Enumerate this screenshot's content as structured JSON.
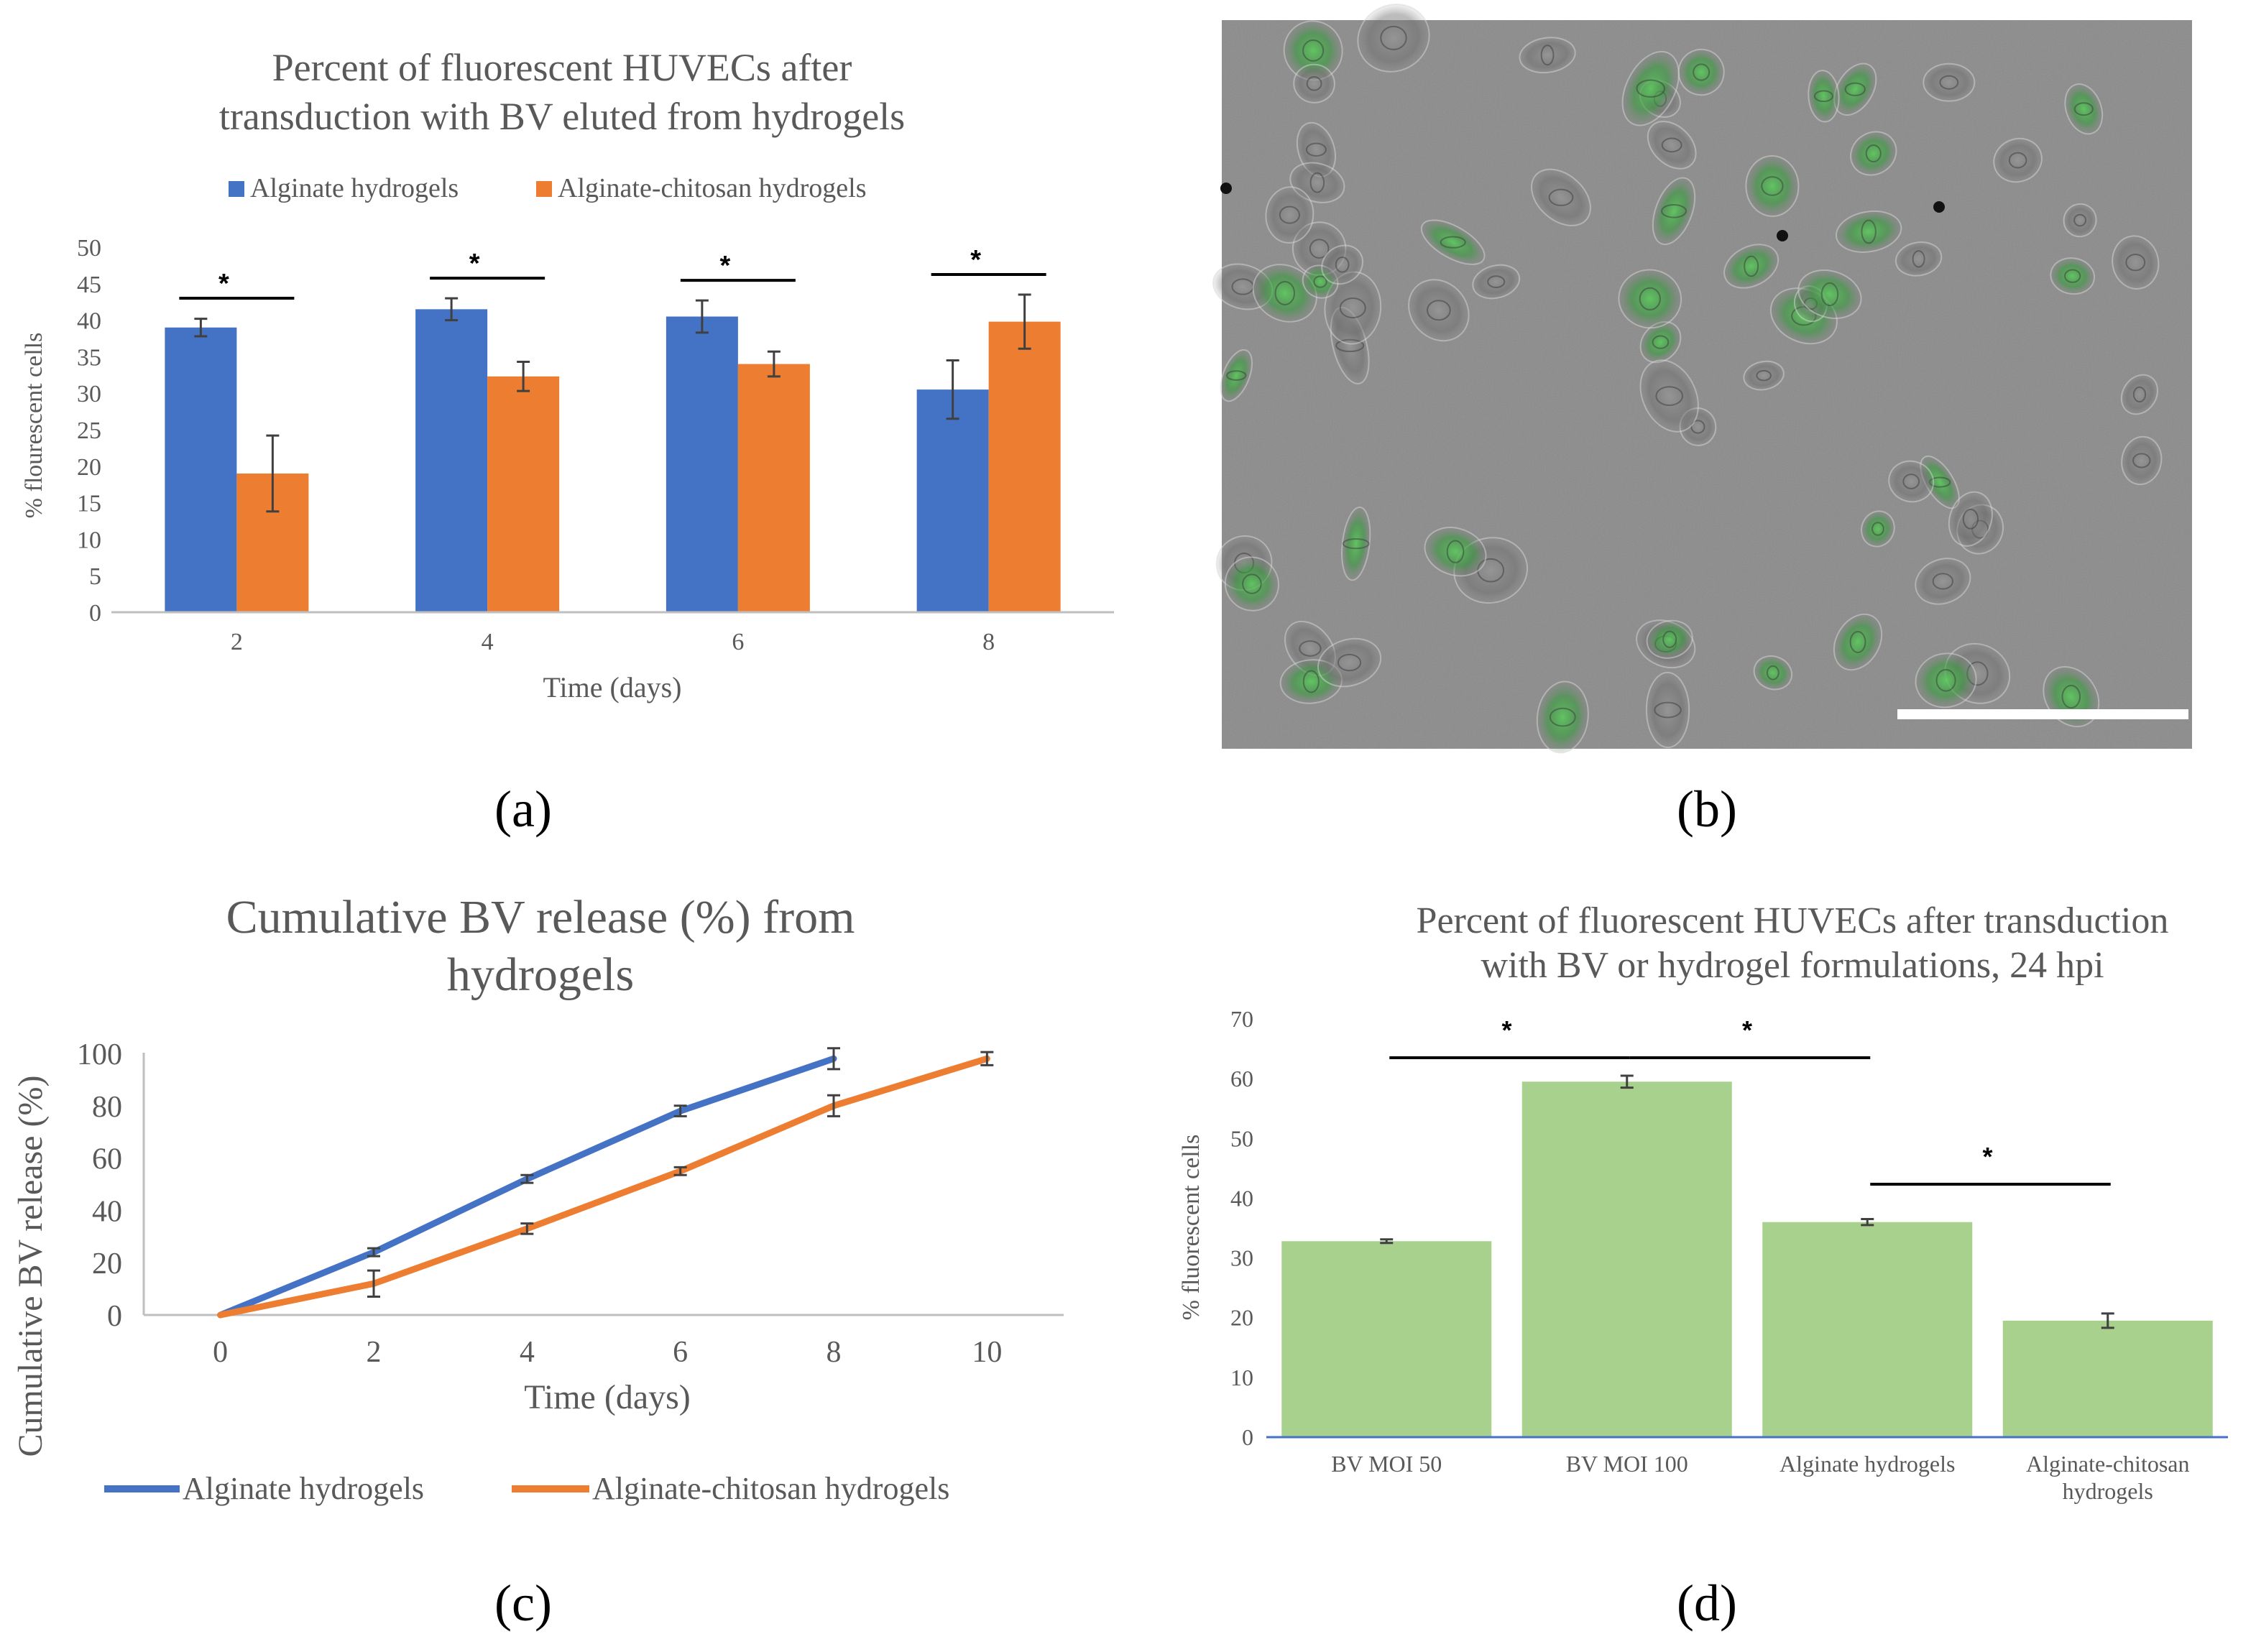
{
  "colors": {
    "alginate": "#4472C4",
    "alginate_chitosan": "#ED7D31",
    "green_bar": "#A9D18E",
    "axis": "#BFBFBF",
    "axis_d": "#4472C4",
    "text": "#595959"
  },
  "chart_data": [
    {
      "panel": "(a)",
      "type": "bar",
      "title": [
        "Percent of fluorescent HUVECs after",
        "transduction with BV eluted from hydrogels"
      ],
      "categories": [
        "2",
        "4",
        "6",
        "8"
      ],
      "series": [
        {
          "name": "Alginate hydrogels",
          "values": [
            39,
            41.5,
            40.5,
            30.5
          ],
          "errors": [
            1.2,
            1.5,
            2.2,
            4
          ]
        },
        {
          "name": "Alginate-chitosan hydrogels",
          "values": [
            19,
            32.3,
            34,
            39.8
          ],
          "errors": [
            5.2,
            2,
            1.7,
            3.7
          ]
        }
      ],
      "significance_label": "*",
      "xlabel": "Time (days)",
      "ylabel": "% flourescent cells",
      "ylim": [
        0,
        50
      ],
      "yticks": [
        "0",
        "5",
        "10",
        "15",
        "20",
        "25",
        "30",
        "35",
        "40",
        "45",
        "50"
      ],
      "legend_position": "top"
    },
    {
      "panel": "(c)",
      "type": "line",
      "title": [
        "Cumulative BV release (%) from",
        "hydrogels"
      ],
      "x": [
        0,
        2,
        4,
        6,
        8,
        10
      ],
      "xticks": [
        "0",
        "2",
        "4",
        "6",
        "8",
        "10"
      ],
      "series": [
        {
          "name": "Alginate hydrogels",
          "x": [
            0,
            2,
            4,
            6,
            8
          ],
          "values": [
            0,
            24,
            52,
            78,
            98
          ],
          "errors": [
            0,
            1.5,
            1.5,
            2,
            4
          ]
        },
        {
          "name": "Alginate-chitosan hydrogels",
          "x": [
            0,
            2,
            4,
            6,
            8,
            10
          ],
          "values": [
            0,
            12,
            33,
            55,
            80,
            98
          ],
          "errors": [
            0,
            5,
            2,
            1.5,
            4,
            2.5
          ]
        }
      ],
      "xlabel": "Time (days)",
      "ylabel": "Cumulative BV release (%)",
      "ylim": [
        0,
        100
      ],
      "yticks": [
        "0",
        "20",
        "40",
        "60",
        "80",
        "100"
      ],
      "legend_position": "bottom"
    },
    {
      "panel": "(d)",
      "type": "bar",
      "title": [
        "Percent of fluorescent HUVECs after transduction",
        "with BV or hydrogel formulations, 24 hpi"
      ],
      "categories": [
        [
          "BV MOI 50"
        ],
        [
          "BV MOI 100"
        ],
        [
          "Alginate hydrogels"
        ],
        [
          "Alginate-chitosan",
          "hydrogels"
        ]
      ],
      "values": [
        32.8,
        59.5,
        36,
        19.5
      ],
      "errors": [
        0.3,
        1,
        0.5,
        1.2
      ],
      "significance_label": "*",
      "xlabel": "",
      "ylabel": "% fluorescent cells",
      "ylim": [
        0,
        70
      ],
      "yticks": [
        "0",
        "10",
        "20",
        "30",
        "40",
        "50",
        "60",
        "70"
      ]
    }
  ],
  "micrograph": {
    "panel": "(b)",
    "description_icon": "fluorescence-micrograph"
  }
}
